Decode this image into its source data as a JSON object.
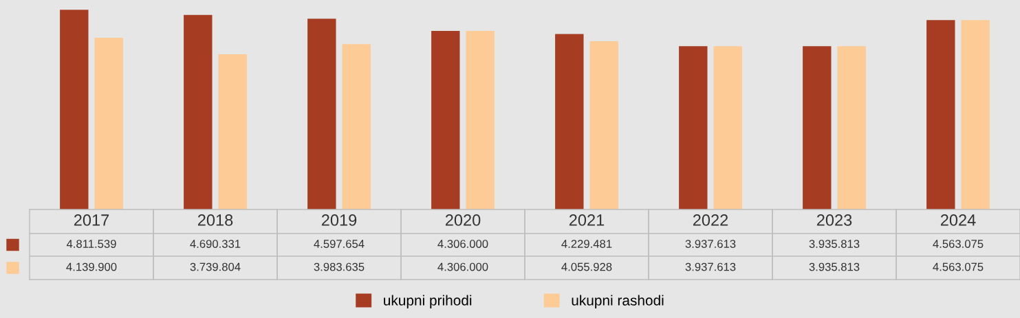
{
  "chart_data": {
    "type": "bar",
    "categories": [
      "2017",
      "2018",
      "2019",
      "2020",
      "2021",
      "2022",
      "2023",
      "2024"
    ],
    "series": [
      {
        "name": "ukupni prihodi",
        "color": "#a63d22",
        "values": [
          4811539,
          4690331,
          4597654,
          4306000,
          4229481,
          3937613,
          3935813,
          4563075
        ],
        "value_labels": [
          "4.811.539",
          "4.690.331",
          "4.597.654",
          "4.306.000",
          "4.229.481",
          "3.937.613",
          "3.935.813",
          "4.563.075"
        ]
      },
      {
        "name": "ukupni rashodi",
        "color": "#fdcb96",
        "values": [
          4139900,
          3739804,
          3983635,
          4306000,
          4055928,
          3937613,
          3935813,
          4563075
        ],
        "value_labels": [
          "4.139.900",
          "3.739.804",
          "3.983.635",
          "4.306.000",
          "4.055.928",
          "3.937.613",
          "3.935.813",
          "4.563.075"
        ]
      }
    ],
    "legend": "bottom"
  }
}
